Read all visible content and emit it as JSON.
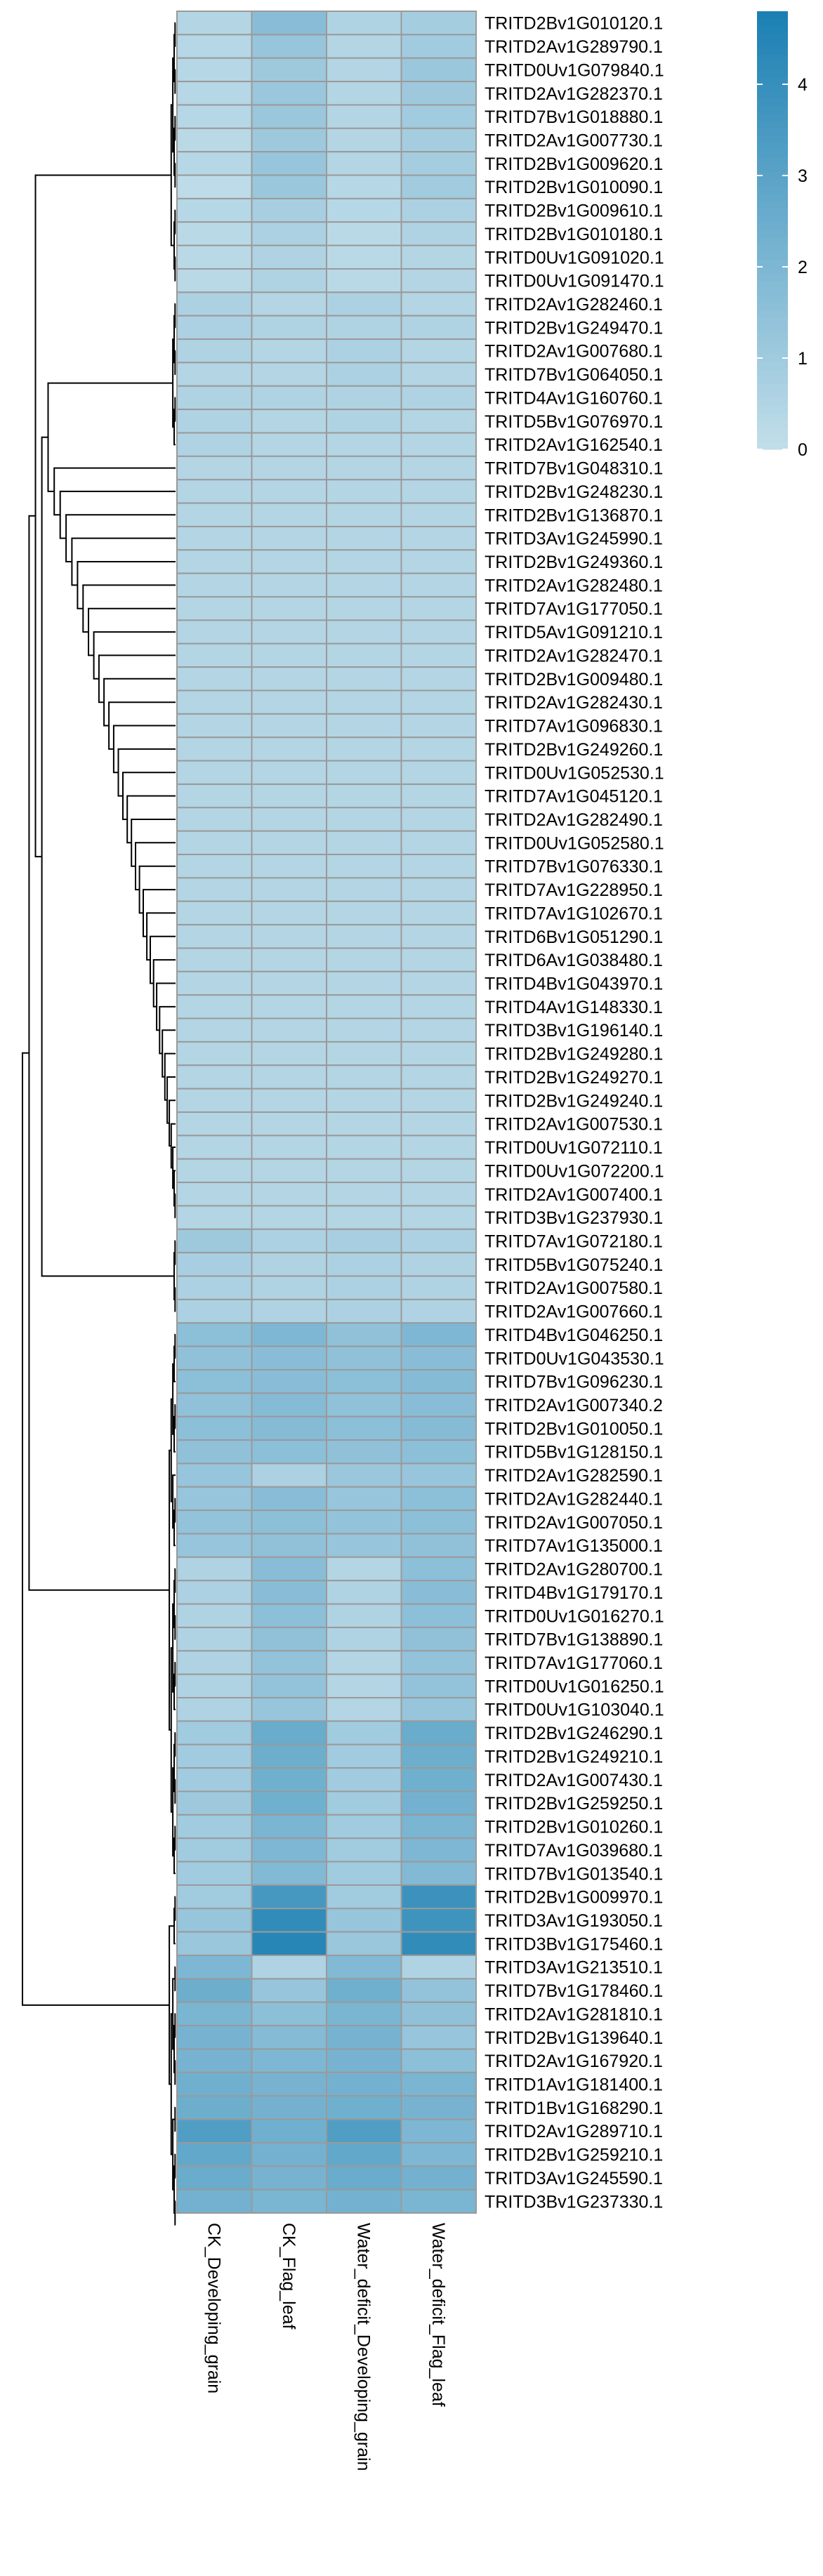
{
  "chart_data": {
    "type": "heatmap",
    "title": "",
    "columns": [
      "CK_Developing_grain",
      "CK_Flag_leaf",
      "Water_deficit_Developing_grain",
      "Water_deficit_Flag_leaf"
    ],
    "rows": [
      {
        "gene": "TRITD2Bv1G010120.1",
        "values": [
          0.5,
          1.7,
          0.6,
          0.9
        ]
      },
      {
        "gene": "TRITD2Av1G289790.1",
        "values": [
          0.4,
          1.3,
          0.5,
          1.0
        ]
      },
      {
        "gene": "TRITD0Uv1G079840.1",
        "values": [
          0.4,
          1.1,
          0.5,
          1.2
        ]
      },
      {
        "gene": "TRITD2Av1G282370.1",
        "values": [
          0.4,
          1.2,
          0.5,
          1.1
        ]
      },
      {
        "gene": "TRITD7Bv1G018880.1",
        "values": [
          0.4,
          1.2,
          0.5,
          1.0
        ]
      },
      {
        "gene": "TRITD2Av1G007730.1",
        "values": [
          0.3,
          1.1,
          0.5,
          0.9
        ]
      },
      {
        "gene": "TRITD2Bv1G009620.1",
        "values": [
          0.4,
          1.3,
          0.5,
          0.9
        ]
      },
      {
        "gene": "TRITD2Bv1G010090.1",
        "values": [
          0.2,
          1.2,
          0.4,
          1.0
        ]
      },
      {
        "gene": "TRITD2Bv1G009610.1",
        "values": [
          0.4,
          0.8,
          0.4,
          0.7
        ]
      },
      {
        "gene": "TRITD2Bv1G010180.1",
        "values": [
          0.3,
          0.7,
          0.3,
          0.6
        ]
      },
      {
        "gene": "TRITD0Uv1G091020.1",
        "values": [
          0.3,
          0.6,
          0.3,
          0.5
        ]
      },
      {
        "gene": "TRITD0Uv1G091470.1",
        "values": [
          0.3,
          0.6,
          0.3,
          0.5
        ]
      },
      {
        "gene": "TRITD2Av1G282460.1",
        "values": [
          0.7,
          0.5,
          0.7,
          0.5
        ]
      },
      {
        "gene": "TRITD2Bv1G249470.1",
        "values": [
          0.7,
          0.6,
          0.6,
          0.6
        ]
      },
      {
        "gene": "TRITD2Av1G007680.1",
        "values": [
          0.6,
          0.5,
          0.7,
          0.5
        ]
      },
      {
        "gene": "TRITD7Bv1G064050.1",
        "values": [
          0.5,
          0.5,
          0.7,
          0.5
        ]
      },
      {
        "gene": "TRITD4Av1G160760.1",
        "values": [
          0.6,
          0.6,
          0.6,
          0.6
        ]
      },
      {
        "gene": "TRITD5Bv1G076970.1",
        "values": [
          0.6,
          0.5,
          0.6,
          0.5
        ]
      },
      {
        "gene": "TRITD2Av1G162540.1",
        "values": [
          0.6,
          0.5,
          0.5,
          0.5
        ]
      },
      {
        "gene": "TRITD7Bv1G048310.1",
        "values": [
          0.5,
          0.5,
          0.5,
          0.5
        ]
      },
      {
        "gene": "TRITD2Bv1G248230.1",
        "values": [
          0.5,
          0.5,
          0.5,
          0.5
        ]
      },
      {
        "gene": "TRITD2Bv1G136870.1",
        "values": [
          0.5,
          0.5,
          0.5,
          0.5
        ]
      },
      {
        "gene": "TRITD3Av1G245990.1",
        "values": [
          0.5,
          0.5,
          0.5,
          0.5
        ]
      },
      {
        "gene": "TRITD2Bv1G249360.1",
        "values": [
          0.5,
          0.5,
          0.5,
          0.5
        ]
      },
      {
        "gene": "TRITD2Av1G282480.1",
        "values": [
          0.5,
          0.5,
          0.5,
          0.5
        ]
      },
      {
        "gene": "TRITD7Av1G177050.1",
        "values": [
          0.5,
          0.5,
          0.5,
          0.5
        ]
      },
      {
        "gene": "TRITD5Av1G091210.1",
        "values": [
          0.5,
          0.5,
          0.5,
          0.5
        ]
      },
      {
        "gene": "TRITD2Av1G282470.1",
        "values": [
          0.5,
          0.5,
          0.5,
          0.5
        ]
      },
      {
        "gene": "TRITD2Bv1G009480.1",
        "values": [
          0.5,
          0.5,
          0.5,
          0.5
        ]
      },
      {
        "gene": "TRITD2Av1G282430.1",
        "values": [
          0.5,
          0.5,
          0.5,
          0.5
        ]
      },
      {
        "gene": "TRITD7Av1G096830.1",
        "values": [
          0.5,
          0.5,
          0.5,
          0.5
        ]
      },
      {
        "gene": "TRITD2Bv1G249260.1",
        "values": [
          0.5,
          0.5,
          0.5,
          0.5
        ]
      },
      {
        "gene": "TRITD0Uv1G052530.1",
        "values": [
          0.5,
          0.5,
          0.5,
          0.5
        ]
      },
      {
        "gene": "TRITD7Av1G045120.1",
        "values": [
          0.5,
          0.5,
          0.5,
          0.5
        ]
      },
      {
        "gene": "TRITD2Av1G282490.1",
        "values": [
          0.5,
          0.5,
          0.5,
          0.5
        ]
      },
      {
        "gene": "TRITD0Uv1G052580.1",
        "values": [
          0.5,
          0.5,
          0.5,
          0.5
        ]
      },
      {
        "gene": "TRITD7Bv1G076330.1",
        "values": [
          0.5,
          0.5,
          0.5,
          0.5
        ]
      },
      {
        "gene": "TRITD7Av1G228950.1",
        "values": [
          0.5,
          0.5,
          0.5,
          0.5
        ]
      },
      {
        "gene": "TRITD7Av1G102670.1",
        "values": [
          0.5,
          0.5,
          0.5,
          0.5
        ]
      },
      {
        "gene": "TRITD6Bv1G051290.1",
        "values": [
          0.5,
          0.5,
          0.5,
          0.5
        ]
      },
      {
        "gene": "TRITD6Av1G038480.1",
        "values": [
          0.5,
          0.5,
          0.5,
          0.5
        ]
      },
      {
        "gene": "TRITD4Bv1G043970.1",
        "values": [
          0.5,
          0.5,
          0.5,
          0.5
        ]
      },
      {
        "gene": "TRITD4Av1G148330.1",
        "values": [
          0.5,
          0.5,
          0.5,
          0.5
        ]
      },
      {
        "gene": "TRITD3Bv1G196140.1",
        "values": [
          0.5,
          0.5,
          0.5,
          0.5
        ]
      },
      {
        "gene": "TRITD2Bv1G249280.1",
        "values": [
          0.5,
          0.5,
          0.5,
          0.5
        ]
      },
      {
        "gene": "TRITD2Bv1G249270.1",
        "values": [
          0.5,
          0.5,
          0.5,
          0.5
        ]
      },
      {
        "gene": "TRITD2Bv1G249240.1",
        "values": [
          0.5,
          0.5,
          0.5,
          0.5
        ]
      },
      {
        "gene": "TRITD2Av1G007530.1",
        "values": [
          0.5,
          0.5,
          0.5,
          0.5
        ]
      },
      {
        "gene": "TRITD0Uv1G072110.1",
        "values": [
          0.5,
          0.5,
          0.5,
          0.5
        ]
      },
      {
        "gene": "TRITD0Uv1G072200.1",
        "values": [
          0.5,
          0.5,
          0.5,
          0.5
        ]
      },
      {
        "gene": "TRITD2Av1G007400.1",
        "values": [
          0.5,
          0.5,
          0.5,
          0.5
        ]
      },
      {
        "gene": "TRITD3Bv1G237930.1",
        "values": [
          0.5,
          0.5,
          0.5,
          0.5
        ]
      },
      {
        "gene": "TRITD7Av1G072180.1",
        "values": [
          1.1,
          0.7,
          0.8,
          0.7
        ]
      },
      {
        "gene": "TRITD5Bv1G075240.1",
        "values": [
          0.8,
          0.6,
          0.7,
          0.6
        ]
      },
      {
        "gene": "TRITD2Av1G007580.1",
        "values": [
          0.7,
          0.6,
          0.7,
          0.6
        ]
      },
      {
        "gene": "TRITD2Av1G007660.1",
        "values": [
          0.7,
          0.6,
          0.7,
          0.6
        ]
      },
      {
        "gene": "TRITD4Bv1G046250.1",
        "values": [
          1.6,
          2.0,
          1.5,
          2.0
        ]
      },
      {
        "gene": "TRITD0Uv1G043530.1",
        "values": [
          1.5,
          1.7,
          1.5,
          1.7
        ]
      },
      {
        "gene": "TRITD7Bv1G096230.1",
        "values": [
          1.6,
          1.7,
          1.6,
          1.8
        ]
      },
      {
        "gene": "TRITD2Av1G007340.2",
        "values": [
          1.5,
          1.8,
          1.5,
          1.7
        ]
      },
      {
        "gene": "TRITD2Bv1G010050.1",
        "values": [
          1.6,
          1.8,
          1.6,
          1.8
        ]
      },
      {
        "gene": "TRITD5Bv1G128150.1",
        "values": [
          1.5,
          1.6,
          1.5,
          1.6
        ]
      },
      {
        "gene": "TRITD2Av1G282590.1",
        "values": [
          1.3,
          0.7,
          1.2,
          1.3
        ]
      },
      {
        "gene": "TRITD2Av1G282440.1",
        "values": [
          1.3,
          1.7,
          1.3,
          1.6
        ]
      },
      {
        "gene": "TRITD2Av1G007050.1",
        "values": [
          1.4,
          1.6,
          1.4,
          1.6
        ]
      },
      {
        "gene": "TRITD7Av1G135000.1",
        "values": [
          1.3,
          1.5,
          1.3,
          1.5
        ]
      },
      {
        "gene": "TRITD2Av1G280700.1",
        "values": [
          0.6,
          1.7,
          0.5,
          1.6
        ]
      },
      {
        "gene": "TRITD4Bv1G179170.1",
        "values": [
          0.7,
          1.7,
          0.6,
          1.7
        ]
      },
      {
        "gene": "TRITD0Uv1G016270.1",
        "values": [
          0.6,
          1.6,
          0.6,
          1.6
        ]
      },
      {
        "gene": "TRITD7Bv1G138890.1",
        "values": [
          0.6,
          1.5,
          0.6,
          1.5
        ]
      },
      {
        "gene": "TRITD7Av1G177060.1",
        "values": [
          0.6,
          1.4,
          0.5,
          1.4
        ]
      },
      {
        "gene": "TRITD0Uv1G016250.1",
        "values": [
          0.6,
          1.4,
          0.5,
          1.4
        ]
      },
      {
        "gene": "TRITD0Uv1G103040.1",
        "values": [
          0.6,
          1.3,
          0.5,
          1.3
        ]
      },
      {
        "gene": "TRITD2Bv1G246290.1",
        "values": [
          1.0,
          2.6,
          1.0,
          2.6
        ]
      },
      {
        "gene": "TRITD2Bv1G249210.1",
        "values": [
          1.0,
          2.5,
          1.0,
          2.5
        ]
      },
      {
        "gene": "TRITD2Av1G007430.1",
        "values": [
          1.0,
          2.4,
          1.0,
          2.4
        ]
      },
      {
        "gene": "TRITD2Bv1G259250.1",
        "values": [
          1.1,
          2.4,
          1.0,
          2.3
        ]
      },
      {
        "gene": "TRITD2Bv1G010260.1",
        "values": [
          1.0,
          2.1,
          1.0,
          2.1
        ]
      },
      {
        "gene": "TRITD7Av1G039680.1",
        "values": [
          1.0,
          2.0,
          1.0,
          2.0
        ]
      },
      {
        "gene": "TRITD7Bv1G013540.1",
        "values": [
          1.0,
          1.9,
          1.0,
          1.9
        ]
      },
      {
        "gene": "TRITD2Bv1G009970.1",
        "values": [
          1.0,
          3.6,
          1.0,
          3.9
        ]
      },
      {
        "gene": "TRITD3Av1G193050.1",
        "values": [
          1.3,
          4.2,
          1.3,
          3.8
        ]
      },
      {
        "gene": "TRITD3Bv1G175460.1",
        "values": [
          1.2,
          4.5,
          1.2,
          4.2
        ]
      },
      {
        "gene": "TRITD3Av1G213510.1",
        "values": [
          2.0,
          0.6,
          1.9,
          0.6
        ]
      },
      {
        "gene": "TRITD7Bv1G178460.1",
        "values": [
          2.5,
          1.3,
          2.4,
          1.4
        ]
      },
      {
        "gene": "TRITD2Av1G281810.1",
        "values": [
          2.1,
          1.6,
          2.1,
          1.5
        ]
      },
      {
        "gene": "TRITD2Bv1G139640.1",
        "values": [
          2.2,
          1.8,
          2.2,
          1.3
        ]
      },
      {
        "gene": "TRITD2Av1G167920.1",
        "values": [
          2.2,
          2.0,
          2.2,
          1.6
        ]
      },
      {
        "gene": "TRITD1Av1G181400.1",
        "values": [
          2.4,
          2.2,
          2.3,
          2.1
        ]
      },
      {
        "gene": "TRITD1Bv1G168290.1",
        "values": [
          2.5,
          2.3,
          2.4,
          2.2
        ]
      },
      {
        "gene": "TRITD2Av1G289710.1",
        "values": [
          3.3,
          2.4,
          3.3,
          2.0
        ]
      },
      {
        "gene": "TRITD2Bv1G259210.1",
        "values": [
          2.8,
          2.3,
          2.8,
          2.0
        ]
      },
      {
        "gene": "TRITD3Av1G245590.1",
        "values": [
          2.6,
          2.2,
          2.6,
          2.3
        ]
      },
      {
        "gene": "TRITD3Bv1G237330.1",
        "values": [
          2.3,
          2.1,
          2.3,
          2.1
        ]
      }
    ],
    "color_scale": {
      "min": 0,
      "max": 4.8,
      "low_color": "#c4dfea",
      "high_color": "#1c80b3",
      "ticks": [
        "0",
        "1",
        "2",
        "3",
        "4"
      ]
    },
    "cell_border_color": "#9a9a9a",
    "dendrogram_color": "#000000",
    "dendrogram_visible": true
  }
}
